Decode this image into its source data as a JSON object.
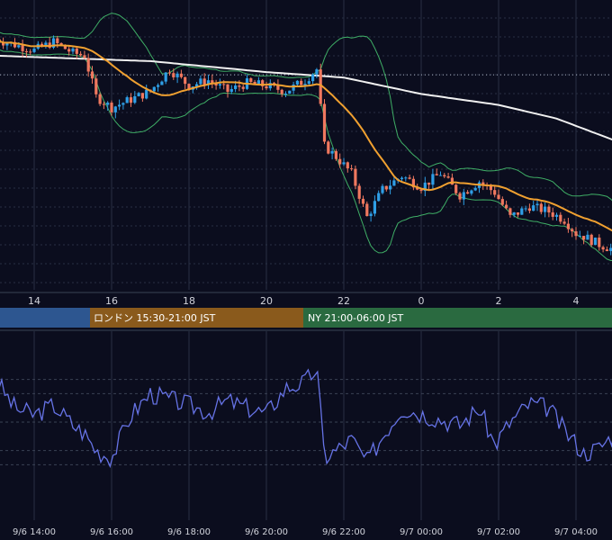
{
  "chart_data": [
    {
      "type": "candlestick",
      "panel": "price",
      "x_ticks": [
        "14",
        "16",
        "18",
        "20",
        "22",
        "0",
        "2",
        "4"
      ],
      "colors": {
        "up": "#2f9fe6",
        "down": "#f0785f",
        "ma_short": "#f0a030",
        "ma_long": "#f0f0f0",
        "bollinger": "#3fae66",
        "grid": "#283044",
        "background": "#0b0d1e"
      },
      "overlays": [
        "bollinger-bands",
        "moving-average-short",
        "moving-average-long"
      ],
      "ylim": [
        0,
        100
      ],
      "reference_line_y": 72,
      "close_path": [
        [
          13.0,
          85
        ],
        [
          13.5,
          83
        ],
        [
          14.0,
          81
        ],
        [
          14.5,
          84
        ],
        [
          15.0,
          80
        ],
        [
          15.3,
          79
        ],
        [
          15.6,
          64
        ],
        [
          16.0,
          60
        ],
        [
          16.5,
          63
        ],
        [
          17.0,
          66
        ],
        [
          17.5,
          74
        ],
        [
          18.0,
          68
        ],
        [
          18.5,
          70
        ],
        [
          19.0,
          66
        ],
        [
          19.5,
          69
        ],
        [
          20.0,
          68
        ],
        [
          20.5,
          66
        ],
        [
          21.0,
          70
        ],
        [
          21.3,
          74
        ],
        [
          21.5,
          46
        ],
        [
          21.8,
          42
        ],
        [
          22.2,
          36
        ],
        [
          22.6,
          20
        ],
        [
          23.0,
          30
        ],
        [
          23.5,
          35
        ],
        [
          24.0,
          31
        ],
        [
          24.5,
          36
        ],
        [
          25.0,
          28
        ],
        [
          25.5,
          33
        ],
        [
          25.9,
          29
        ],
        [
          26.3,
          20
        ],
        [
          26.8,
          24
        ],
        [
          27.3,
          22
        ],
        [
          27.7,
          19
        ],
        [
          28.0,
          14
        ],
        [
          28.2,
          13
        ],
        [
          28.6,
          10
        ],
        [
          29.0,
          8
        ],
        [
          29.4,
          9
        ],
        [
          29.7,
          10
        ]
      ]
    },
    {
      "type": "line",
      "panel": "oscillator",
      "ylim": [
        0,
        100
      ],
      "levels": [
        80,
        70,
        50,
        30,
        20
      ],
      "color": "#6673e6",
      "values": [
        [
          13.0,
          80
        ],
        [
          13.5,
          60
        ],
        [
          14.0,
          55
        ],
        [
          14.5,
          62
        ],
        [
          15.0,
          48
        ],
        [
          15.3,
          42
        ],
        [
          15.6,
          30
        ],
        [
          16.0,
          25
        ],
        [
          16.5,
          55
        ],
        [
          17.0,
          70
        ],
        [
          17.5,
          66
        ],
        [
          18.0,
          62
        ],
        [
          18.5,
          57
        ],
        [
          19.0,
          65
        ],
        [
          19.5,
          60
        ],
        [
          20.0,
          56
        ],
        [
          20.5,
          74
        ],
        [
          21.0,
          78
        ],
        [
          21.3,
          88
        ],
        [
          21.5,
          25
        ],
        [
          21.8,
          30
        ],
        [
          22.2,
          38
        ],
        [
          22.6,
          22
        ],
        [
          23.0,
          40
        ],
        [
          23.5,
          60
        ],
        [
          24.0,
          56
        ],
        [
          24.5,
          52
        ],
        [
          25.0,
          48
        ],
        [
          25.5,
          60
        ],
        [
          25.9,
          34
        ],
        [
          26.3,
          50
        ],
        [
          26.8,
          63
        ],
        [
          27.3,
          60
        ],
        [
          27.7,
          44
        ],
        [
          28.0,
          35
        ],
        [
          28.2,
          28
        ],
        [
          28.6,
          32
        ],
        [
          29.0,
          42
        ],
        [
          29.4,
          66
        ],
        [
          29.7,
          72
        ]
      ],
      "x_ticks": [
        "9/6 14:00",
        "9/6 16:00",
        "9/6 18:00",
        "9/6 20:00",
        "9/6 22:00",
        "9/7 00:00",
        "9/7 02:00",
        "9/7 04:00"
      ]
    }
  ],
  "sessions": [
    {
      "label": "",
      "color": "#2d5690",
      "text_color": "#ffffff"
    },
    {
      "label": "ロンドン 15:30-21:00 JST",
      "color": "#8a5a1c",
      "text_color": "#ffffff"
    },
    {
      "label": "NY 21:00-06:00 JST",
      "color": "#2a6a40",
      "text_color": "#ffffff"
    }
  ]
}
